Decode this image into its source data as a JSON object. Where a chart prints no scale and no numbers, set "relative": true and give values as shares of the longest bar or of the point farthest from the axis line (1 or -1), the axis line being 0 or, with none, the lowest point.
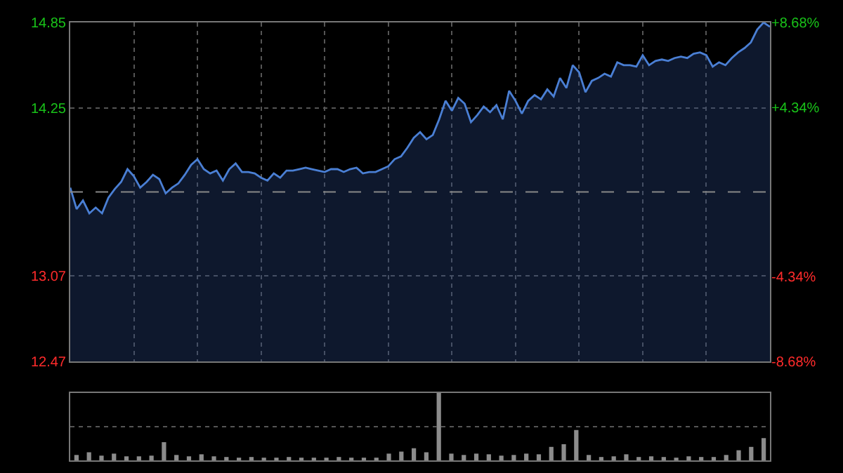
{
  "chart_data": [
    {
      "type": "area",
      "categories": [
        null,
        null,
        null,
        null,
        null,
        null,
        null,
        null,
        null,
        null,
        null,
        null,
        null,
        null,
        null,
        null,
        null,
        null,
        null,
        null,
        null,
        null,
        null,
        null,
        null,
        null,
        null,
        null,
        null,
        null,
        null,
        null,
        null,
        null,
        null,
        null,
        null,
        null,
        null,
        null,
        null,
        null,
        null,
        null,
        null,
        null,
        null,
        null,
        null,
        null,
        null,
        null,
        null,
        null,
        null,
        null,
        null,
        null,
        null,
        null,
        null,
        null,
        null,
        null,
        null,
        null,
        null,
        null,
        null,
        null,
        null,
        null,
        null,
        null,
        null,
        null,
        null,
        null,
        null,
        null,
        null,
        null,
        null,
        null,
        null,
        null,
        null,
        null,
        null,
        null,
        null,
        null,
        null,
        null,
        null,
        null,
        null,
        null,
        null,
        null,
        null,
        null,
        null,
        null,
        null,
        null,
        null,
        null,
        null,
        null,
        null
      ],
      "series": [
        {
          "color": "#4a7fd4",
          "values": [
            13.69,
            13.54,
            13.6,
            13.51,
            13.55,
            13.51,
            13.62,
            13.68,
            13.73,
            13.82,
            13.77,
            13.69,
            13.73,
            13.78,
            13.75,
            13.65,
            13.69,
            13.72,
            13.78,
            13.85,
            13.89,
            13.82,
            13.79,
            13.81,
            13.74,
            13.82,
            13.86,
            13.8,
            13.8,
            13.79,
            13.76,
            13.74,
            13.79,
            13.76,
            13.81,
            13.81,
            13.82,
            13.83,
            13.82,
            13.81,
            13.8,
            13.82,
            13.82,
            13.8,
            13.82,
            13.83,
            13.79,
            13.8,
            13.8,
            13.82,
            13.84,
            13.89,
            13.91,
            13.97,
            14.04,
            14.08,
            14.03,
            14.06,
            14.17,
            14.3,
            14.23,
            14.32,
            14.28,
            14.15,
            14.2,
            14.26,
            14.22,
            14.27,
            14.17,
            14.37,
            14.3,
            14.21,
            14.3,
            14.34,
            14.31,
            14.38,
            14.33,
            14.46,
            14.39,
            14.55,
            14.5,
            14.36,
            14.44,
            14.46,
            14.49,
            14.47,
            14.57,
            14.55,
            14.55,
            14.54,
            14.62,
            14.55,
            14.58,
            14.59,
            14.58,
            14.6,
            14.61,
            14.6,
            14.63,
            14.64,
            14.62,
            14.54,
            14.57,
            14.55,
            14.6,
            14.64,
            14.67,
            14.71,
            14.8,
            14.85,
            14.82
          ]
        }
      ],
      "ylim": [
        12.47,
        14.85
      ],
      "yticks": [
        12.47,
        13.07,
        14.25,
        14.85
      ],
      "y2lim": [
        -8.68,
        8.68
      ],
      "y2ticks": [
        {
          "value": -8.68,
          "label": "-8.68%"
        },
        {
          "value": -4.34,
          "label": "-4.34%"
        },
        {
          "value": 4.34,
          "label": "+4.34%"
        },
        {
          "value": 8.68,
          "label": "+8.68%"
        }
      ],
      "ref_lines": [
        {
          "axis": "y",
          "value": 13.66,
          "color": "#888888",
          "line_style": "dashed"
        }
      ],
      "grid": true,
      "tick_labels": [
        "y",
        "y2"
      ]
    },
    {
      "type": "bar",
      "relative": true,
      "categories": [
        null,
        null,
        null,
        null,
        null,
        null,
        null,
        null,
        null,
        null,
        null,
        null,
        null,
        null,
        null,
        null,
        null,
        null,
        null,
        null,
        null,
        null,
        null,
        null,
        null,
        null,
        null,
        null,
        null,
        null,
        null,
        null,
        null,
        null,
        null,
        null,
        null,
        null,
        null,
        null,
        null,
        null,
        null,
        null,
        null,
        null,
        null,
        null,
        null,
        null,
        null,
        null,
        null,
        null,
        null,
        null
      ],
      "values": [
        0.08,
        0.12,
        0.07,
        0.1,
        0.06,
        0.06,
        0.07,
        0.27,
        0.08,
        0.06,
        0.09,
        0.06,
        0.05,
        0.04,
        0.05,
        0.04,
        0.04,
        0.05,
        0.04,
        0.04,
        0.04,
        0.05,
        0.04,
        0.04,
        0.04,
        0.1,
        0.13,
        0.18,
        0.12,
        1.0,
        0.1,
        0.08,
        0.1,
        0.09,
        0.07,
        0.08,
        0.1,
        0.09,
        0.2,
        0.24,
        0.45,
        0.08,
        0.05,
        0.06,
        0.09,
        0.05,
        0.06,
        0.05,
        0.04,
        0.06,
        0.05,
        0.05,
        0.08,
        0.15,
        0.2,
        0.33
      ],
      "color": "#8c8c8c",
      "ref_lines": [
        {
          "axis": "y",
          "value": 0.5,
          "color": "#555555",
          "line_style": "dotted"
        }
      ],
      "tick_labels": false
    }
  ]
}
